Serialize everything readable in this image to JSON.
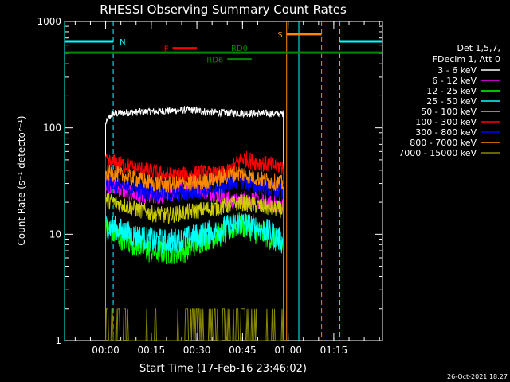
{
  "chart_data": {
    "type": "line",
    "title": "RHESSI Observing Summary Count Rates",
    "xlabel": "Start Time (17-Feb-16 23:46:02)",
    "ylabel": "Count Rate (s⁻¹ detector⁻¹)",
    "yscale": "log",
    "xlim_minutes": [
      -13.5,
      91
    ],
    "ylim": [
      1,
      1000
    ],
    "x_ticks": [
      {
        "minute": 0,
        "label": "00:00"
      },
      {
        "minute": 15,
        "label": "00:15"
      },
      {
        "minute": 30,
        "label": "00:30"
      },
      {
        "minute": 45,
        "label": "00:45"
      },
      {
        "minute": 60,
        "label": "01:00"
      },
      {
        "minute": 75,
        "label": "01:15"
      }
    ],
    "y_ticks": [
      {
        "value": 1,
        "label": "1"
      },
      {
        "value": 10,
        "label": "10"
      },
      {
        "value": 100,
        "label": "100"
      },
      {
        "value": 1000,
        "label": "1000"
      }
    ],
    "legend_header": [
      "Det 1,5,7,",
      "FDecim 1, Att 0"
    ],
    "legend_position": "right",
    "data_start_minute": 0,
    "data_end_minute": 58.5,
    "series": [
      {
        "name": "3 - 6 keV",
        "color": "#ffffff",
        "points": [
          [
            0,
            110
          ],
          [
            2,
            135
          ],
          [
            8,
            140
          ],
          [
            15,
            142
          ],
          [
            22,
            145
          ],
          [
            28,
            148
          ],
          [
            35,
            140
          ],
          [
            42,
            138
          ],
          [
            50,
            137
          ],
          [
            58,
            136
          ]
        ]
      },
      {
        "name": "6 - 12 keV",
        "color": "#ff00ff",
        "points": [
          [
            0,
            30
          ],
          [
            3,
            28
          ],
          [
            8,
            24
          ],
          [
            15,
            22
          ],
          [
            22,
            24
          ],
          [
            28,
            30
          ],
          [
            32,
            26
          ],
          [
            38,
            23
          ],
          [
            42,
            20
          ],
          [
            46,
            22
          ],
          [
            52,
            20
          ],
          [
            58,
            19
          ]
        ]
      },
      {
        "name": "12 - 25 keV",
        "color": "#00ff00",
        "points": [
          [
            0,
            11
          ],
          [
            3,
            10
          ],
          [
            8,
            8.5
          ],
          [
            14,
            7
          ],
          [
            20,
            6.8
          ],
          [
            26,
            7
          ],
          [
            32,
            9
          ],
          [
            38,
            10
          ],
          [
            44,
            12.5
          ],
          [
            48,
            11
          ],
          [
            52,
            10
          ],
          [
            55,
            9
          ],
          [
            58,
            8
          ]
        ]
      },
      {
        "name": "25 - 50 keV",
        "color": "#00ffff",
        "points": [
          [
            0,
            12
          ],
          [
            3,
            11.5
          ],
          [
            8,
            10
          ],
          [
            14,
            9
          ],
          [
            20,
            8.5
          ],
          [
            26,
            9
          ],
          [
            32,
            10
          ],
          [
            38,
            11
          ],
          [
            44,
            13
          ],
          [
            48,
            12
          ],
          [
            52,
            11
          ],
          [
            55,
            10
          ],
          [
            58,
            8.5
          ]
        ]
      },
      {
        "name": "50 - 100 keV",
        "color": "#cccc00",
        "points": [
          [
            0,
            21
          ],
          [
            3,
            20
          ],
          [
            8,
            18
          ],
          [
            14,
            16
          ],
          [
            20,
            15
          ],
          [
            26,
            16
          ],
          [
            32,
            17
          ],
          [
            38,
            18
          ],
          [
            44,
            20
          ],
          [
            48,
            19
          ],
          [
            52,
            18
          ],
          [
            58,
            17
          ]
        ]
      },
      {
        "name": "100 - 300 keV",
        "color": "#ff0000",
        "points": [
          [
            0,
            48
          ],
          [
            3,
            47
          ],
          [
            8,
            43
          ],
          [
            14,
            39
          ],
          [
            20,
            36
          ],
          [
            26,
            36
          ],
          [
            32,
            38
          ],
          [
            36,
            36
          ],
          [
            40,
            38
          ],
          [
            45,
            52
          ],
          [
            50,
            47
          ],
          [
            54,
            45
          ],
          [
            58,
            43
          ]
        ]
      },
      {
        "name": "300 - 800 keV",
        "color": "#0000ff",
        "points": [
          [
            0,
            30
          ],
          [
            3,
            29
          ],
          [
            8,
            27
          ],
          [
            14,
            25
          ],
          [
            20,
            24
          ],
          [
            26,
            24
          ],
          [
            32,
            26
          ],
          [
            38,
            28
          ],
          [
            44,
            32
          ],
          [
            48,
            29
          ],
          [
            52,
            27
          ],
          [
            58,
            25
          ]
        ]
      },
      {
        "name": "800 - 7000 keV",
        "color": "#ff8800",
        "points": [
          [
            0,
            38
          ],
          [
            3,
            37
          ],
          [
            8,
            34
          ],
          [
            14,
            31
          ],
          [
            20,
            29
          ],
          [
            26,
            30
          ],
          [
            32,
            31
          ],
          [
            38,
            34
          ],
          [
            44,
            38
          ],
          [
            48,
            35
          ],
          [
            52,
            32
          ],
          [
            58,
            30
          ]
        ]
      },
      {
        "name": "7000 - 15000 keV",
        "color": "#888800",
        "points": [
          [
            0,
            2
          ],
          [
            3,
            2
          ],
          [
            6,
            1.5
          ],
          [
            8,
            1
          ],
          [
            24,
            1
          ],
          [
            32,
            1.6
          ],
          [
            36,
            2
          ],
          [
            44,
            2
          ],
          [
            48,
            1.3
          ],
          [
            52,
            1
          ],
          [
            58,
            1
          ]
        ]
      }
    ],
    "annotations": [
      {
        "label": "N",
        "color": "#00ffff",
        "segments": [
          [
            -13.5,
            2.5
          ],
          [
            77,
            91
          ]
        ],
        "dashed_minutes": [
          2.5,
          77
        ],
        "line_value": 650
      },
      {
        "label": "F",
        "color": "#ff0000",
        "segment": [
          22,
          30
        ],
        "line_value": 560
      },
      {
        "label": "RD0",
        "color": "#008800",
        "segment": [
          -13.5,
          91
        ],
        "line_value": 510
      },
      {
        "label": "RD6",
        "color": "#008800",
        "segment": [
          40,
          48
        ],
        "line_value": 440
      },
      {
        "label": "S",
        "color": "#ff8800",
        "segment": [
          59.5,
          71
        ],
        "line_value": 760,
        "dashed_minutes": [
          71
        ]
      }
    ],
    "vertical_lines": [
      {
        "minute": -13.5,
        "color": "#00ffff",
        "style": "solid"
      },
      {
        "minute": 2.5,
        "color": "#00ffff",
        "style": "dashed"
      },
      {
        "minute": 59.5,
        "color": "#ff8800",
        "style": "solid"
      },
      {
        "minute": 63.5,
        "color": "#00ffff",
        "style": "solid"
      },
      {
        "minute": 71,
        "color": "#ff8800",
        "style": "dashed"
      },
      {
        "minute": 77,
        "color": "#00ffff",
        "style": "dashed"
      }
    ]
  },
  "footer_date": "26-Oct-2021 18:27"
}
